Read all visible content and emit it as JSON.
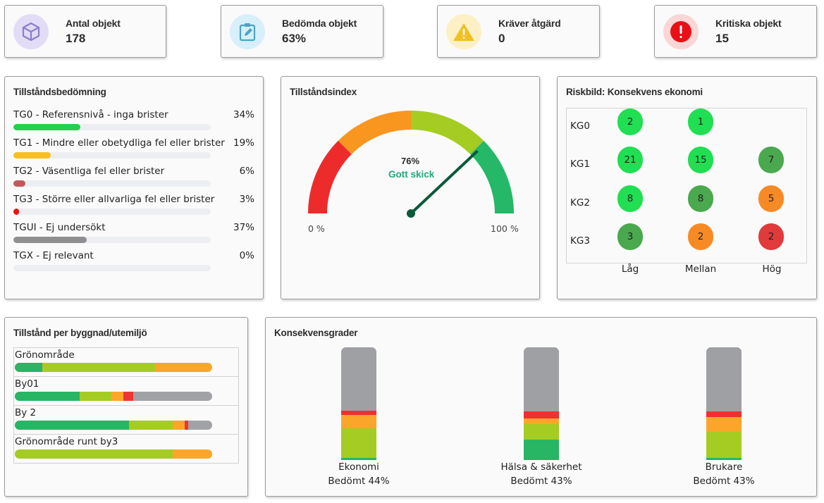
{
  "kpis": [
    {
      "label": "Antal objekt",
      "value": "178",
      "icon": "cube-icon",
      "bg": "#e2dcf6",
      "color": "#8c7ed0"
    },
    {
      "label": "Bedömda objekt",
      "value": "63%",
      "icon": "clipboard-edit-icon",
      "bg": "#d7eff8",
      "color": "#4aa6c6"
    },
    {
      "label": "Kräver åtgärd",
      "value": "0",
      "icon": "warning-icon",
      "bg": "#fdf0c4",
      "color": "#f4bf24"
    },
    {
      "label": "Kritiska objekt",
      "value": "15",
      "icon": "exclamation-icon",
      "bg": "#fbd6d6",
      "color": "#ea0f16"
    }
  ],
  "condition": {
    "title": "Tillståndsbedömning",
    "items": [
      {
        "label": "TG0 - Referensnivå - inga brister",
        "pct": "34%",
        "value": 34,
        "color": "#22d14c"
      },
      {
        "label": "TG1 - Mindre eller obetydliga fel eller brister",
        "pct": "19%",
        "value": 19,
        "color": "#f7c11a"
      },
      {
        "label": "TG2 - Väsentliga fel eller brister",
        "pct": "6%",
        "value": 6,
        "color": "#c05a5a"
      },
      {
        "label": "TG3 - Större eller allvarliga fel eller brister",
        "pct": "3%",
        "value": 3,
        "color": "#ee1111"
      },
      {
        "label": "TGUI - Ej undersökt",
        "pct": "37%",
        "value": 37,
        "color": "#8f8f8f"
      },
      {
        "label": "TGX - Ej relevant",
        "pct": "0%",
        "value": 0,
        "color": "#8f8f8f"
      }
    ]
  },
  "index": {
    "title": "Tillståndsindex",
    "value": 76,
    "value_label": "76%",
    "status": "Gott skick",
    "min_label": "0 %",
    "max_label": "100 %",
    "bands": [
      {
        "from": 0,
        "to": 25,
        "color": "#ee2b2b"
      },
      {
        "from": 25,
        "to": 50,
        "color": "#f99620"
      },
      {
        "from": 50,
        "to": 75,
        "color": "#a5cc22"
      },
      {
        "from": 75,
        "to": 100,
        "color": "#24b868"
      }
    ],
    "needle_color": "#0b5a3a"
  },
  "risk": {
    "title": "Riskbild: Konsekvens ekonomi",
    "rows": [
      "KG0",
      "KG1",
      "KG2",
      "KG3"
    ],
    "cols": [
      "Låg",
      "Mellan",
      "Hög"
    ],
    "cells": [
      [
        {
          "v": "2",
          "c": "#20df52"
        },
        {
          "v": "1",
          "c": "#20df52"
        },
        null
      ],
      [
        {
          "v": "21",
          "c": "#20df52"
        },
        {
          "v": "15",
          "c": "#20df52"
        },
        {
          "v": "7",
          "c": "#4aa94e"
        }
      ],
      [
        {
          "v": "8",
          "c": "#20df52"
        },
        {
          "v": "8",
          "c": "#4aa94e"
        },
        {
          "v": "5",
          "c": "#f88a26"
        }
      ],
      [
        {
          "v": "3",
          "c": "#4aa94e"
        },
        {
          "v": "2",
          "c": "#f88a26"
        },
        {
          "v": "2",
          "c": "#e03a3a"
        }
      ]
    ]
  },
  "buildings": {
    "title": "Tillstånd per byggnad/utemiljö",
    "colors": {
      "tg0": "#28b564",
      "tg1": "#a5cc22",
      "tg2": "#fba62a",
      "tg3": "#ee3535",
      "tgui": "#a0a2a6"
    },
    "rows": [
      {
        "name": "Grönområde",
        "segments": [
          {
            "k": "tg0",
            "v": 14
          },
          {
            "k": "tg1",
            "v": 57
          },
          {
            "k": "tg2",
            "v": 29
          }
        ]
      },
      {
        "name": "By01",
        "segments": [
          {
            "k": "tg0",
            "v": 33
          },
          {
            "k": "tg1",
            "v": 16
          },
          {
            "k": "tg2",
            "v": 6
          },
          {
            "k": "tg3",
            "v": 5
          },
          {
            "k": "tgui",
            "v": 40
          }
        ]
      },
      {
        "name": "By 2",
        "segments": [
          {
            "k": "tg0",
            "v": 58
          },
          {
            "k": "tg1",
            "v": 22
          },
          {
            "k": "tg2",
            "v": 6
          },
          {
            "k": "tg3",
            "v": 2
          },
          {
            "k": "tgui",
            "v": 12
          }
        ]
      },
      {
        "name": "Grönområde runt by3",
        "segments": [
          {
            "k": "tg1",
            "v": 80
          },
          {
            "k": "tg2",
            "v": 20
          }
        ]
      }
    ]
  },
  "consequence": {
    "title": "Konsekvensgrader",
    "colors": {
      "gray": "#9ea0a4",
      "red": "#ee3030",
      "orange": "#fba62a",
      "lime": "#a5cc22",
      "green": "#28b564"
    },
    "cols": [
      {
        "name": "Ekonomi",
        "sub": "Bedömt 44%",
        "segments": [
          {
            "k": "green",
            "v": 2
          },
          {
            "k": "lime",
            "v": 26
          },
          {
            "k": "orange",
            "v": 12
          },
          {
            "k": "red",
            "v": 4
          },
          {
            "k": "gray",
            "v": 56
          }
        ]
      },
      {
        "name": "Hälsa & säkerhet",
        "sub": "Bedömt 43%",
        "segments": [
          {
            "k": "green",
            "v": 18
          },
          {
            "k": "lime",
            "v": 14
          },
          {
            "k": "orange",
            "v": 5
          },
          {
            "k": "red",
            "v": 6
          },
          {
            "k": "gray",
            "v": 57
          }
        ]
      },
      {
        "name": "Brukare",
        "sub": "Bedömt 43%",
        "segments": [
          {
            "k": "green",
            "v": 2
          },
          {
            "k": "lime",
            "v": 23
          },
          {
            "k": "orange",
            "v": 13
          },
          {
            "k": "red",
            "v": 5
          },
          {
            "k": "gray",
            "v": 57
          }
        ]
      }
    ]
  }
}
